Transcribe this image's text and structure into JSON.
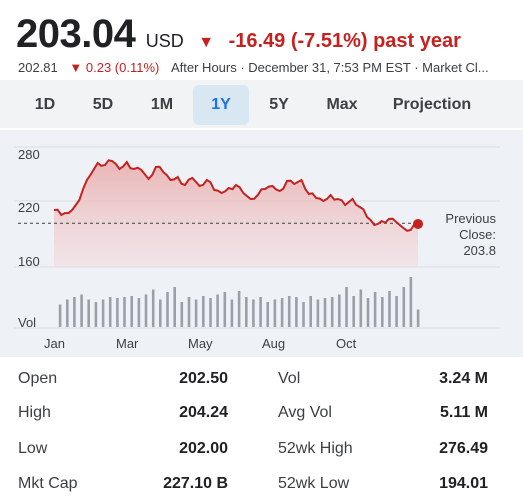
{
  "quote": {
    "price": "203.04",
    "currency": "USD",
    "change_arrow": "▼",
    "change_text": "-16.49 (-7.51%) past year",
    "after_hours_price": "202.81",
    "after_hours_arrow": "▼",
    "after_hours_change": "0.23 (0.11%)",
    "after_hours_label": "After Hours · December 31, 7:53 PM EST · Market Cl..."
  },
  "tabs": [
    {
      "label": "1D",
      "active": false
    },
    {
      "label": "5D",
      "active": false
    },
    {
      "label": "1M",
      "active": false
    },
    {
      "label": "1Y",
      "active": true
    },
    {
      "label": "5Y",
      "active": false
    },
    {
      "label": "Max",
      "active": false
    },
    {
      "label": "Projection",
      "active": false
    }
  ],
  "chart_data": {
    "type": "line",
    "title": "",
    "ylim": [
      160,
      280
    ],
    "yticks": [
      "280",
      "220",
      "160"
    ],
    "xticks": [
      "Jan",
      "Mar",
      "May",
      "Aug",
      "Oct"
    ],
    "volume_label": "Vol",
    "previous_close_label": [
      "Previous",
      "Close:",
      "203.8"
    ],
    "previous_close": 203.8,
    "colors": {
      "line": "#c5221f",
      "fill": "#f4c7c7",
      "volume": "#9aa0a6"
    },
    "series": [
      {
        "values": [
          217,
          212,
          214,
          222,
          238,
          252,
          264,
          262,
          266,
          258,
          265,
          258,
          257,
          248,
          260,
          255,
          247,
          250,
          242,
          249,
          241,
          247,
          237,
          234,
          239,
          242,
          234,
          228,
          232,
          238,
          241,
          236,
          246,
          243,
          247,
          233,
          229,
          226,
          232,
          228,
          222,
          228,
          220,
          210,
          202,
          206,
          208,
          205,
          199,
          197,
          203.04
        ]
      }
    ],
    "volume": [
      0.45,
      0.55,
      0.6,
      0.65,
      0.55,
      0.5,
      0.55,
      0.6,
      0.58,
      0.6,
      0.62,
      0.58,
      0.65,
      0.75,
      0.55,
      0.7,
      0.8,
      0.5,
      0.6,
      0.55,
      0.62,
      0.58,
      0.65,
      0.7,
      0.55,
      0.72,
      0.6,
      0.55,
      0.6,
      0.5,
      0.55,
      0.58,
      0.62,
      0.6,
      0.5,
      0.62,
      0.55,
      0.58,
      0.6,
      0.65,
      0.8,
      0.62,
      0.75,
      0.58,
      0.7,
      0.6,
      0.72,
      0.62,
      0.8,
      1.0,
      0.35
    ]
  },
  "stats": [
    {
      "label1": "Open",
      "value1": "202.50",
      "label2": "Vol",
      "value2": "3.24 M"
    },
    {
      "label1": "High",
      "value1": "204.24",
      "label2": "Avg Vol",
      "value2": "5.11 M"
    },
    {
      "label1": "Low",
      "value1": "202.00",
      "label2": "52wk High",
      "value2": "276.49"
    },
    {
      "label1": "Mkt Cap",
      "value1": "227.10 B",
      "label2": "52wk Low",
      "value2": "194.01"
    }
  ]
}
